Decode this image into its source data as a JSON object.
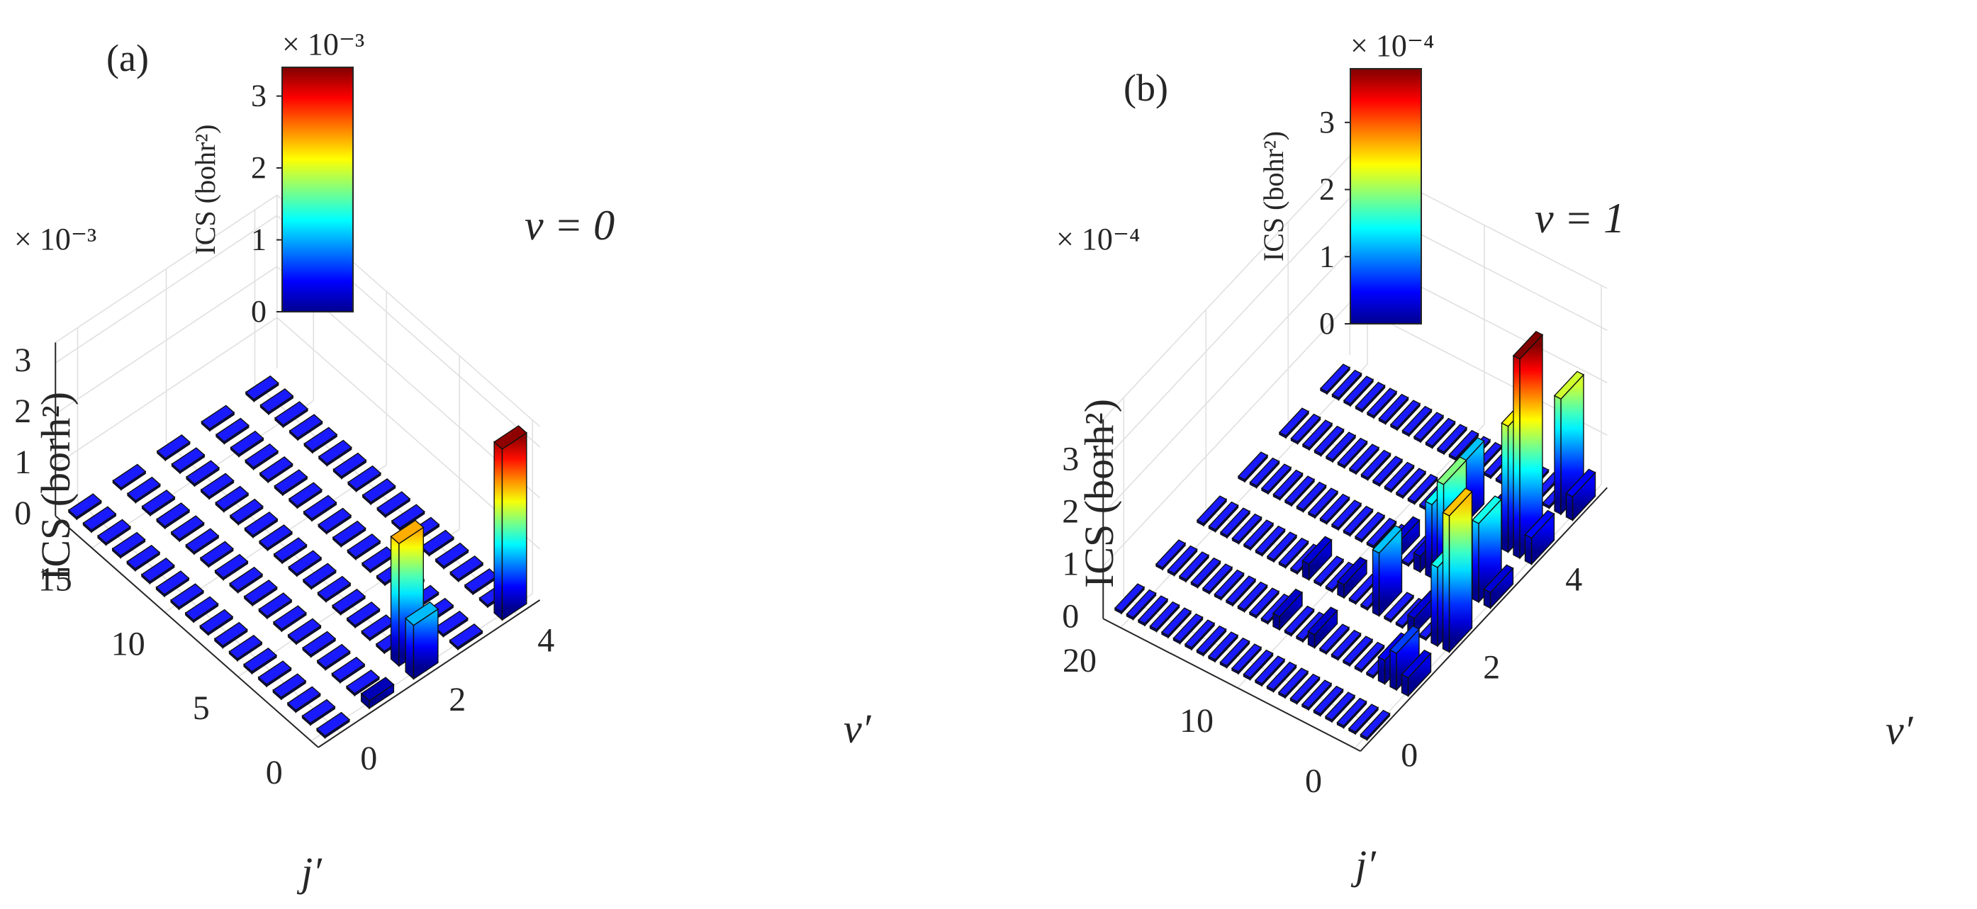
{
  "figure": {
    "colorbar_stops": [
      "#00008f",
      "#0000ff",
      "#0080ff",
      "#00ffff",
      "#80ff80",
      "#ffff00",
      "#ff8000",
      "#ff0000",
      "#800000"
    ]
  },
  "chart_data": [
    {
      "type": "bar3d",
      "panel_label": "(a)",
      "annotation": "v = 0",
      "zlabel": "ICS (borh²)",
      "xlabel": "j′",
      "ylabel": "v′",
      "exponent": "× 10⁻³",
      "colorbar_exponent": "× 10⁻³",
      "colorbar_label": "ICS (bohr²)",
      "colorbar_ticks": [
        "0",
        "1",
        "2",
        "3"
      ],
      "colorbar_range": [
        0,
        3.4
      ],
      "zlim": [
        0,
        3.4
      ],
      "z_ticks": [
        "0",
        "1",
        "2",
        "3"
      ],
      "j_ticks": [
        "0",
        "5",
        "10",
        "15"
      ],
      "v_ticks": [
        "0",
        "2",
        "4"
      ],
      "j_count": 18,
      "v_count": 5,
      "nonzero_bars": [
        {
          "v": 1,
          "j": 0,
          "value": 0.15
        },
        {
          "v": 2,
          "j": 0,
          "value": 1.05
        },
        {
          "v": 2,
          "j": 1,
          "value": 2.4
        },
        {
          "v": 4,
          "j": 0,
          "value": 3.35
        }
      ]
    },
    {
      "type": "bar3d",
      "panel_label": "(b)",
      "annotation": "v = 1",
      "zlabel": "ICS (borh²)",
      "xlabel": "j′",
      "ylabel": "v′",
      "exponent": "× 10⁻⁴",
      "colorbar_exponent": "× 10⁻⁴",
      "colorbar_label": "ICS (bohr²)",
      "colorbar_ticks": [
        "0",
        "1",
        "2",
        "3"
      ],
      "colorbar_range": [
        0,
        3.8
      ],
      "zlim": [
        0,
        3.8
      ],
      "z_ticks": [
        "0",
        "1",
        "2",
        "3"
      ],
      "j_ticks": [
        "0",
        "10",
        "20"
      ],
      "v_ticks": [
        "0",
        "2",
        "4"
      ],
      "j_count": 22,
      "v_count": 6,
      "nonzero_bars": [
        {
          "v": 1,
          "j": 0,
          "value": 0.35
        },
        {
          "v": 1,
          "j": 1,
          "value": 0.7
        },
        {
          "v": 1,
          "j": 2,
          "value": 0.45
        },
        {
          "v": 1,
          "j": 8,
          "value": 0.25
        },
        {
          "v": 1,
          "j": 11,
          "value": 0.25
        },
        {
          "v": 2,
          "j": 0,
          "value": 2.6
        },
        {
          "v": 2,
          "j": 1,
          "value": 1.5
        },
        {
          "v": 2,
          "j": 3,
          "value": 0.3
        },
        {
          "v": 2,
          "j": 6,
          "value": 1.2
        },
        {
          "v": 2,
          "j": 9,
          "value": 0.25
        },
        {
          "v": 2,
          "j": 12,
          "value": 0.3
        },
        {
          "v": 3,
          "j": 0,
          "value": 0.3
        },
        {
          "v": 3,
          "j": 1,
          "value": 1.5
        },
        {
          "v": 3,
          "j": 4,
          "value": 1.9
        },
        {
          "v": 3,
          "j": 5,
          "value": 1.4
        },
        {
          "v": 3,
          "j": 6,
          "value": 0.3
        },
        {
          "v": 3,
          "j": 8,
          "value": 0.3
        },
        {
          "v": 4,
          "j": 0,
          "value": 0.5
        },
        {
          "v": 4,
          "j": 1,
          "value": 3.8
        },
        {
          "v": 4,
          "j": 2,
          "value": 2.4
        },
        {
          "v": 4,
          "j": 4,
          "value": 0.35
        },
        {
          "v": 4,
          "j": 6,
          "value": 1.2
        },
        {
          "v": 5,
          "j": 0,
          "value": 0.45
        },
        {
          "v": 5,
          "j": 1,
          "value": 2.2
        }
      ]
    }
  ]
}
